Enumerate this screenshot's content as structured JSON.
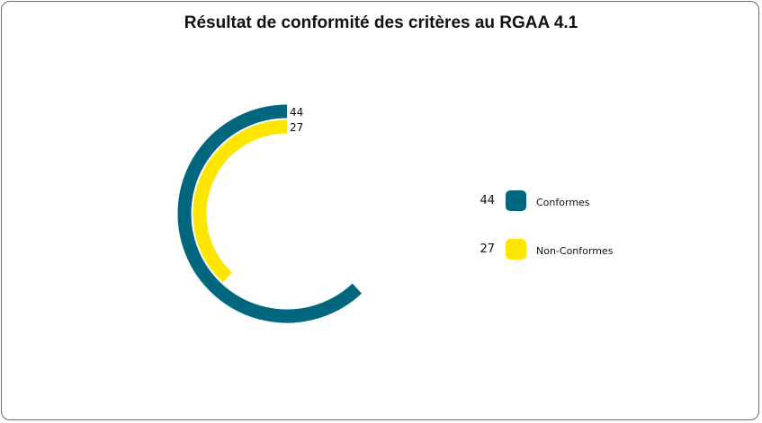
{
  "chart_data": {
    "type": "radial_bar",
    "title": "Résultat de conformité des critères au RGAA 4.1",
    "max": 71,
    "series": [
      {
        "name": "Conformes",
        "value": 44,
        "color": "#00677F"
      },
      {
        "name": "Non-Conformes",
        "value": 27,
        "color": "#FFE600"
      }
    ],
    "legend": "right"
  }
}
